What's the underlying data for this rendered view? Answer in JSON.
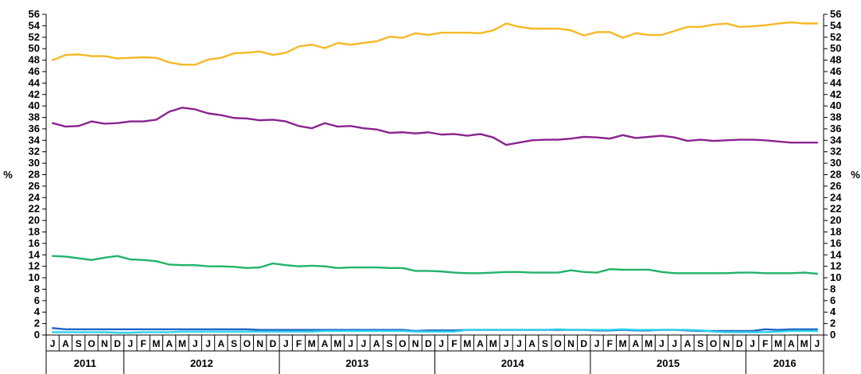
{
  "chart_data": {
    "type": "line",
    "ylabel": "%",
    "ylabel_right": "%",
    "ylim": [
      0,
      56
    ],
    "ytick_step": 2,
    "grid": false,
    "x": [
      "J",
      "A",
      "S",
      "O",
      "N",
      "D",
      "J",
      "F",
      "M",
      "A",
      "M",
      "J",
      "J",
      "A",
      "S",
      "O",
      "N",
      "D",
      "J",
      "F",
      "M",
      "A",
      "M",
      "J",
      "J",
      "A",
      "S",
      "O",
      "N",
      "D",
      "J",
      "F",
      "M",
      "A",
      "M",
      "J",
      "J",
      "A",
      "S",
      "O",
      "N",
      "D",
      "J",
      "F",
      "M",
      "A",
      "M",
      "J",
      "J",
      "A",
      "S",
      "O",
      "N",
      "D",
      "J",
      "F",
      "M",
      "A",
      "M",
      "J"
    ],
    "year_groups": [
      {
        "label": "2011",
        "count": 6
      },
      {
        "label": "2012",
        "count": 12
      },
      {
        "label": "2013",
        "count": 12
      },
      {
        "label": "2014",
        "count": 12
      },
      {
        "label": "2015",
        "count": 12
      },
      {
        "label": "2016",
        "count": 6
      }
    ],
    "series": [
      {
        "color": "#f5b925",
        "values": [
          48.0,
          48.9,
          49.0,
          48.7,
          48.7,
          48.3,
          48.4,
          48.5,
          48.4,
          47.6,
          47.2,
          47.2,
          48.1,
          48.4,
          49.2,
          49.3,
          49.5,
          48.9,
          49.3,
          50.4,
          50.7,
          50.1,
          51.0,
          50.7,
          51.0,
          51.3,
          52.1,
          51.9,
          52.7,
          52.4,
          52.8,
          52.8,
          52.8,
          52.7,
          53.2,
          54.4,
          53.8,
          53.5,
          53.5,
          53.5,
          53.2,
          52.3,
          52.9,
          52.9,
          51.9,
          52.7,
          52.4,
          52.4,
          53.1,
          53.8,
          53.8,
          54.2,
          54.4,
          53.8,
          53.9,
          54.1,
          54.4,
          54.6,
          54.4,
          54.4
        ]
      },
      {
        "color": "#8a2491",
        "values": [
          37.0,
          36.4,
          36.5,
          37.3,
          36.9,
          37.0,
          37.3,
          37.3,
          37.6,
          39.0,
          39.7,
          39.4,
          38.7,
          38.4,
          37.9,
          37.8,
          37.5,
          37.6,
          37.3,
          36.5,
          36.1,
          37.0,
          36.4,
          36.5,
          36.1,
          35.9,
          35.3,
          35.4,
          35.2,
          35.4,
          35.0,
          35.1,
          34.8,
          35.1,
          34.5,
          33.2,
          33.6,
          34.0,
          34.1,
          34.1,
          34.3,
          34.6,
          34.5,
          34.3,
          34.9,
          34.4,
          34.6,
          34.8,
          34.5,
          33.9,
          34.1,
          33.9,
          34.0,
          34.1,
          34.1,
          34.0,
          33.8,
          33.6,
          33.6,
          33.6
        ]
      },
      {
        "color": "#22b36a",
        "values": [
          13.8,
          13.7,
          13.4,
          13.1,
          13.5,
          13.8,
          13.2,
          13.1,
          12.9,
          12.3,
          12.2,
          12.2,
          12.0,
          12.0,
          11.9,
          11.7,
          11.8,
          12.5,
          12.2,
          12.0,
          12.1,
          12.0,
          11.7,
          11.8,
          11.8,
          11.8,
          11.7,
          11.7,
          11.2,
          11.2,
          11.1,
          10.9,
          10.8,
          10.8,
          10.9,
          11.0,
          11.0,
          10.9,
          10.9,
          10.9,
          11.3,
          11.0,
          10.9,
          11.5,
          11.4,
          11.4,
          11.4,
          11.0,
          10.8,
          10.8,
          10.8,
          10.8,
          10.8,
          10.9,
          10.9,
          10.8,
          10.8,
          10.8,
          10.9,
          10.7
        ]
      },
      {
        "color": "#1e66c8",
        "values": [
          1.2,
          1.0,
          1.0,
          1.0,
          1.0,
          1.0,
          1.0,
          1.0,
          1.0,
          1.0,
          1.0,
          1.0,
          1.0,
          1.0,
          1.0,
          1.0,
          0.9,
          0.9,
          0.9,
          0.9,
          0.9,
          0.9,
          0.9,
          0.9,
          0.9,
          0.9,
          0.9,
          0.9,
          0.7,
          0.8,
          0.8,
          0.8,
          0.9,
          0.9,
          0.9,
          0.9,
          0.9,
          0.9,
          0.9,
          0.9,
          0.9,
          0.9,
          0.8,
          0.8,
          0.9,
          0.8,
          0.8,
          0.9,
          0.9,
          0.8,
          0.7,
          0.7,
          0.7,
          0.7,
          0.7,
          1.0,
          0.9,
          1.0,
          1.0,
          1.0
        ]
      },
      {
        "color": "#2fd0e8",
        "values": [
          0.5,
          0.5,
          0.5,
          0.5,
          0.5,
          0.4,
          0.4,
          0.5,
          0.5,
          0.5,
          0.6,
          0.6,
          0.6,
          0.6,
          0.6,
          0.6,
          0.6,
          0.6,
          0.6,
          0.6,
          0.6,
          0.7,
          0.7,
          0.7,
          0.7,
          0.7,
          0.7,
          0.7,
          0.6,
          0.6,
          0.6,
          0.6,
          0.9,
          0.9,
          0.9,
          0.9,
          0.9,
          0.9,
          0.9,
          1.0,
          0.9,
          0.9,
          0.9,
          0.9,
          1.0,
          0.9,
          0.9,
          0.9,
          0.9,
          0.9,
          0.8,
          0.6,
          0.5,
          0.5,
          0.5,
          0.5,
          0.6,
          0.7,
          0.7,
          0.7
        ]
      }
    ]
  }
}
